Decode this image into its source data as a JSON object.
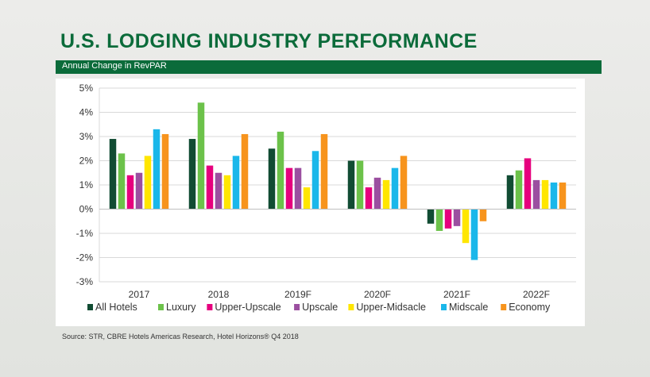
{
  "title": "U.S. LODGING INDUSTRY PERFORMANCE",
  "subtitle": "Annual Change in RevPAR",
  "source": "Source: STR, CBRE Hotels Americas Research, Hotel Horizons® Q4 2018",
  "colors": {
    "title_green": "#0b6b3a",
    "subtitle_bar": "#0b6b3a"
  },
  "chart_data": {
    "type": "bar",
    "title": "",
    "xlabel": "",
    "ylabel": "",
    "ylim": [
      -3,
      5
    ],
    "y_ticks": [
      -3,
      -2,
      -1,
      0,
      1,
      2,
      3,
      4,
      5
    ],
    "y_tick_labels": [
      "-3%",
      "-2%",
      "-1%",
      "0%",
      "1%",
      "2%",
      "3%",
      "4%",
      "5%"
    ],
    "grid": true,
    "legend": "bottom",
    "categories": [
      "2017",
      "2018",
      "2019F",
      "2020F",
      "2021F",
      "2022F"
    ],
    "series": [
      {
        "name": "All Hotels",
        "color": "#114c33",
        "values": [
          2.9,
          2.9,
          2.5,
          2.0,
          -0.6,
          1.4
        ]
      },
      {
        "name": "Luxury",
        "color": "#6cc24a",
        "values": [
          2.3,
          4.4,
          3.2,
          2.0,
          -0.9,
          1.6
        ]
      },
      {
        "name": "Upper-Upscale",
        "color": "#e6007e",
        "values": [
          1.4,
          1.8,
          1.7,
          0.9,
          -0.8,
          2.1
        ]
      },
      {
        "name": "Upscale",
        "color": "#9b4fa0",
        "values": [
          1.5,
          1.5,
          1.7,
          1.3,
          -0.7,
          1.2
        ]
      },
      {
        "name": "Upper-Midsacle",
        "color": "#ffe600",
        "values": [
          2.2,
          1.4,
          0.9,
          1.2,
          -1.4,
          1.2
        ]
      },
      {
        "name": "Midscale",
        "color": "#1ab7ea",
        "values": [
          3.3,
          2.2,
          2.4,
          1.7,
          -2.1,
          1.1
        ]
      },
      {
        "name": "Economy",
        "color": "#f7941d",
        "values": [
          3.1,
          3.1,
          3.1,
          2.2,
          -0.5,
          1.1
        ]
      }
    ]
  }
}
